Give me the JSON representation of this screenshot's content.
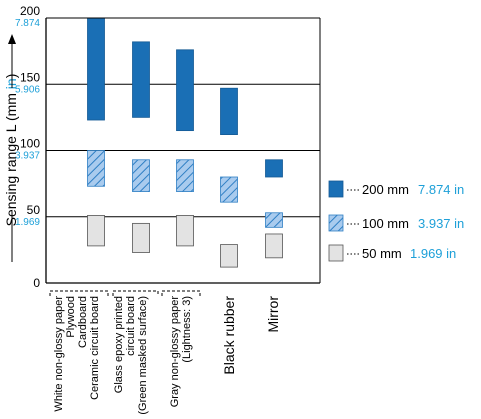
{
  "chart_data": {
    "type": "bar",
    "ylabel": "Sensing range L (mm in)",
    "ylim": [
      0,
      200
    ],
    "y_ticks": [
      {
        "value": 0,
        "mm": "0",
        "inch": ""
      },
      {
        "value": 50,
        "mm": "50",
        "inch": "1.969"
      },
      {
        "value": 100,
        "mm": "100",
        "inch": "3.937"
      },
      {
        "value": 150,
        "mm": "150",
        "inch": "5.906"
      },
      {
        "value": 200,
        "mm": "200",
        "inch": "7.874"
      }
    ],
    "categories": [
      "White non-glossy paper\nPlywood\nCardboard\nCeramic circuit board",
      "Glass epoxy printed\ncircuit board\n(Green masked surface)",
      "Gray non-glossy paper\n(Lightness: 3)",
      "Black rubber",
      "Mirror"
    ],
    "series": [
      {
        "name": "200 mm 7.874 in",
        "mm": "200 mm",
        "inch": "7.874 in",
        "color": "#1a6fb5",
        "pattern": "solid",
        "ranges": [
          [
            123,
            200
          ],
          [
            125,
            182
          ],
          [
            115,
            176
          ],
          [
            112,
            147
          ],
          [
            80,
            93
          ]
        ]
      },
      {
        "name": "100 mm 3.937 in",
        "mm": "100 mm",
        "inch": "3.937 in",
        "color": "#7fb0e0",
        "pattern": "hatched",
        "ranges": [
          [
            73,
            100
          ],
          [
            69,
            93
          ],
          [
            69,
            93
          ],
          [
            61,
            80
          ],
          [
            42,
            53
          ]
        ]
      },
      {
        "name": "50 mm 1.969 in",
        "mm": "50 mm",
        "inch": "1.969 in",
        "color": "#e3e3e3",
        "pattern": "light",
        "ranges": [
          [
            28,
            51
          ],
          [
            23,
            45
          ],
          [
            28,
            51
          ],
          [
            12,
            29
          ],
          [
            19,
            37
          ]
        ]
      }
    ],
    "gridlines": [
      50,
      100,
      150
    ],
    "legend_position": "right",
    "colors": {
      "accent_text": "#1ea0d8",
      "axis": "#000000",
      "stroke": "#444444"
    }
  }
}
